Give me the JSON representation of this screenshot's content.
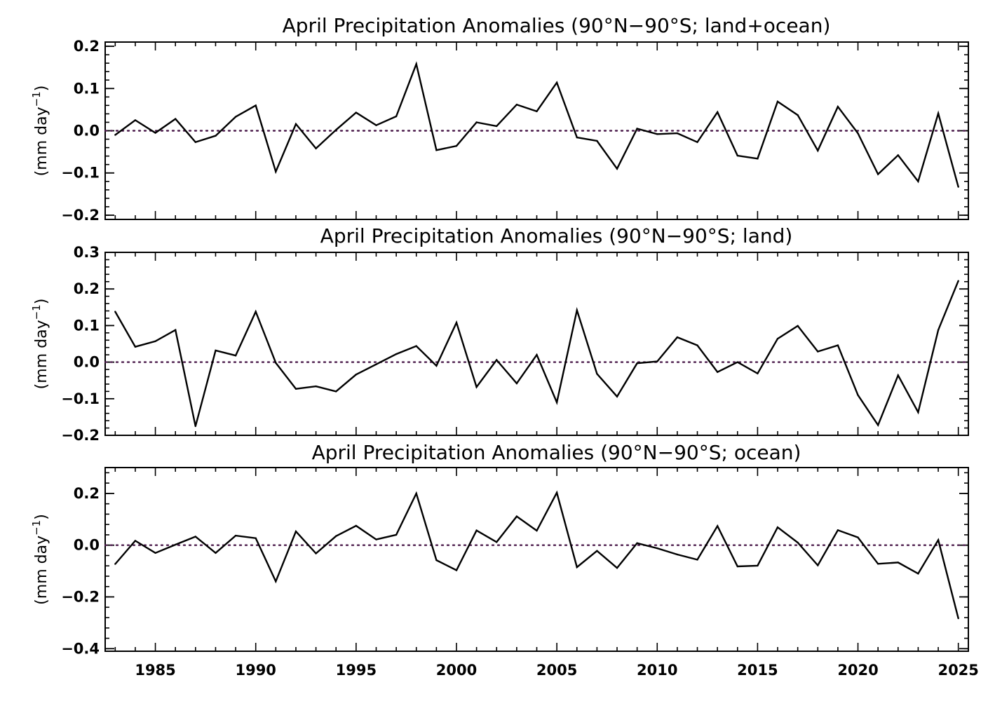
{
  "figure_titles": [
    "April Precipitation Anomalies (90°N−90°S; land+ocean)",
    "April Precipitation Anomalies (90°N−90°S; land)",
    "April Precipitation Anomalies (90°N−90°S; ocean)"
  ],
  "ylabel": {
    "main": "(mm day",
    "sup": "−1",
    "close": ")"
  },
  "colors": {
    "line": "#000000",
    "zero_line": "#4b1b4b",
    "axes": "#000000"
  },
  "chart_data": [
    {
      "type": "line",
      "title": "April Precipitation Anomalies (90°N−90°S; land+ocean)",
      "xlabel": "",
      "ylabel": "(mm day⁻¹)",
      "xlim": [
        1982.5,
        2025.5
      ],
      "ylim": [
        -0.21,
        0.21
      ],
      "yticks": [
        -0.2,
        -0.1,
        0.0,
        0.1,
        0.2
      ],
      "ytick_labels": [
        "−0.2",
        "−0.1",
        "0.0",
        "0.1",
        "0.2"
      ],
      "zero_line": "dotted",
      "x": [
        1983,
        1984,
        1985,
        1986,
        1987,
        1988,
        1989,
        1990,
        1991,
        1992,
        1993,
        1994,
        1995,
        1996,
        1997,
        1998,
        1999,
        2000,
        2001,
        2002,
        2003,
        2004,
        2005,
        2006,
        2007,
        2008,
        2009,
        2010,
        2011,
        2012,
        2013,
        2014,
        2015,
        2016,
        2017,
        2018,
        2019,
        2020,
        2021,
        2022,
        2023,
        2024,
        2025
      ],
      "series": [
        {
          "values": [
            -0.01,
            0.025,
            -0.005,
            0.028,
            -0.027,
            -0.012,
            0.033,
            0.06,
            -0.097,
            0.016,
            -0.042,
            0.002,
            0.043,
            0.013,
            0.034,
            0.158,
            -0.046,
            -0.036,
            0.02,
            0.011,
            0.062,
            0.046,
            0.114,
            -0.016,
            -0.024,
            -0.09,
            0.005,
            -0.008,
            -0.006,
            -0.027,
            0.044,
            -0.059,
            -0.066,
            0.069,
            0.037,
            -0.047,
            0.057,
            -0.006,
            -0.103,
            -0.058,
            -0.12,
            0.041,
            -0.133
          ]
        }
      ]
    },
    {
      "type": "line",
      "title": "April Precipitation Anomalies (90°N−90°S; land)",
      "xlabel": "",
      "ylabel": "(mm day⁻¹)",
      "xlim": [
        1982.5,
        2025.5
      ],
      "ylim": [
        -0.2,
        0.3
      ],
      "yticks": [
        -0.2,
        -0.1,
        0.0,
        0.1,
        0.2,
        0.3
      ],
      "ytick_labels": [
        "−0.2",
        "−0.1",
        "0.0",
        "0.1",
        "0.2",
        "0.3"
      ],
      "zero_line": "dotted",
      "x": [
        1983,
        1984,
        1985,
        1986,
        1987,
        1988,
        1989,
        1990,
        1991,
        1992,
        1993,
        1994,
        1995,
        1996,
        1997,
        1998,
        1999,
        2000,
        2001,
        2002,
        2003,
        2004,
        2005,
        2006,
        2007,
        2008,
        2009,
        2010,
        2011,
        2012,
        2013,
        2014,
        2015,
        2016,
        2017,
        2018,
        2019,
        2020,
        2021,
        2022,
        2023,
        2024,
        2025
      ],
      "series": [
        {
          "values": [
            0.138,
            0.042,
            0.057,
            0.088,
            -0.175,
            0.032,
            0.018,
            0.138,
            -0.002,
            -0.073,
            -0.066,
            -0.08,
            -0.034,
            -0.006,
            0.022,
            0.044,
            -0.01,
            0.108,
            -0.068,
            0.006,
            -0.058,
            0.02,
            -0.11,
            0.142,
            -0.032,
            -0.094,
            -0.003,
            0.002,
            0.068,
            0.046,
            -0.027,
            0.0,
            -0.031,
            0.064,
            0.099,
            0.029,
            0.046,
            -0.09,
            -0.172,
            -0.036,
            -0.137,
            0.088,
            0.222
          ]
        }
      ]
    },
    {
      "type": "line",
      "title": "April Precipitation Anomalies (90°N−90°S; ocean)",
      "xlabel": "",
      "ylabel": "(mm day⁻¹)",
      "xlim": [
        1982.5,
        2025.5
      ],
      "ylim": [
        -0.41,
        0.3
      ],
      "yticks": [
        -0.4,
        -0.2,
        0.0,
        0.2
      ],
      "ytick_labels": [
        "−0.4",
        "−0.2",
        "0.0",
        "0.2"
      ],
      "xticks": [
        1985,
        1990,
        1995,
        2000,
        2005,
        2010,
        2015,
        2020,
        2025
      ],
      "xtick_labels": [
        "1985",
        "1990",
        "1995",
        "2000",
        "2005",
        "2010",
        "2015",
        "2020",
        "2025"
      ],
      "zero_line": "dotted",
      "x": [
        1983,
        1984,
        1985,
        1986,
        1987,
        1988,
        1989,
        1990,
        1991,
        1992,
        1993,
        1994,
        1995,
        1996,
        1997,
        1998,
        1999,
        2000,
        2001,
        2002,
        2003,
        2004,
        2005,
        2006,
        2007,
        2008,
        2009,
        2010,
        2011,
        2012,
        2013,
        2014,
        2015,
        2016,
        2017,
        2018,
        2019,
        2020,
        2021,
        2022,
        2023,
        2024,
        2025
      ],
      "series": [
        {
          "values": [
            -0.073,
            0.017,
            -0.03,
            0.002,
            0.033,
            -0.03,
            0.037,
            0.027,
            -0.14,
            0.053,
            -0.032,
            0.035,
            0.075,
            0.022,
            0.04,
            0.2,
            -0.058,
            -0.097,
            0.057,
            0.012,
            0.111,
            0.056,
            0.203,
            -0.085,
            -0.022,
            -0.088,
            0.008,
            -0.012,
            -0.036,
            -0.056,
            0.074,
            -0.082,
            -0.079,
            0.069,
            0.01,
            -0.078,
            0.058,
            0.03,
            -0.072,
            -0.067,
            -0.11,
            0.02,
            -0.283
          ]
        }
      ]
    }
  ]
}
